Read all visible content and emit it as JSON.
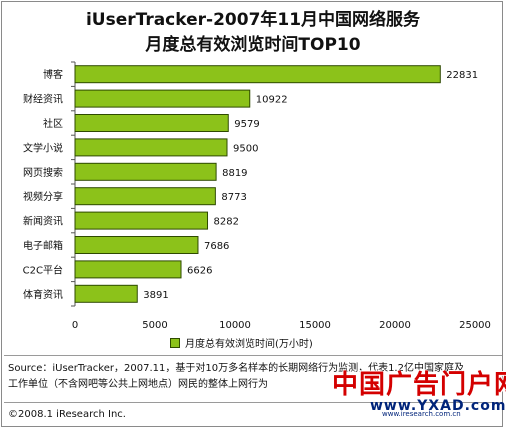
{
  "chart_data": {
    "type": "bar",
    "orientation": "horizontal",
    "title_line1": "iUserTracker-2007年11月中国网络服务",
    "title_line2": "月度总有效浏览时间TOP10",
    "categories": [
      "博客",
      "财经资讯",
      "社区",
      "文学小说",
      "网页搜索",
      "视频分享",
      "新闻资讯",
      "电子邮箱",
      "C2C平台",
      "体育资讯"
    ],
    "series": [
      {
        "name": "月度总有效浏览时间(万小时)",
        "values": [
          22831,
          10922,
          9579,
          9500,
          8819,
          8773,
          8282,
          7686,
          6626,
          3891
        ]
      }
    ],
    "value_labels": [
      "22831",
      "10922",
      "9579",
      "9500",
      "8819",
      "8773",
      "8282",
      "7686",
      "6626",
      "3891"
    ],
    "xticks": [
      "0",
      "5000",
      "10000",
      "15000",
      "20000",
      "25000"
    ],
    "xlim": [
      0,
      25000
    ],
    "grid": false,
    "legend_position": "bottom",
    "bar_color": "#8cc21a",
    "bar_edge_color": "#2e4a00"
  },
  "footer": {
    "source_line1": "Source：iUserTracker，2007.11，基于对10万多名样本的长期网络行为监测，代表1.2亿中国家庭及",
    "source_line2": "工作单位（不含网吧等公共上网地点）网民的整体上网行为",
    "copyright": "©2008.1 iResearch Inc."
  },
  "watermark": {
    "logo_text": "中国广告门户网",
    "url": "www.YXAD.com",
    "sub_url": "www.iresearch.com.cn"
  }
}
